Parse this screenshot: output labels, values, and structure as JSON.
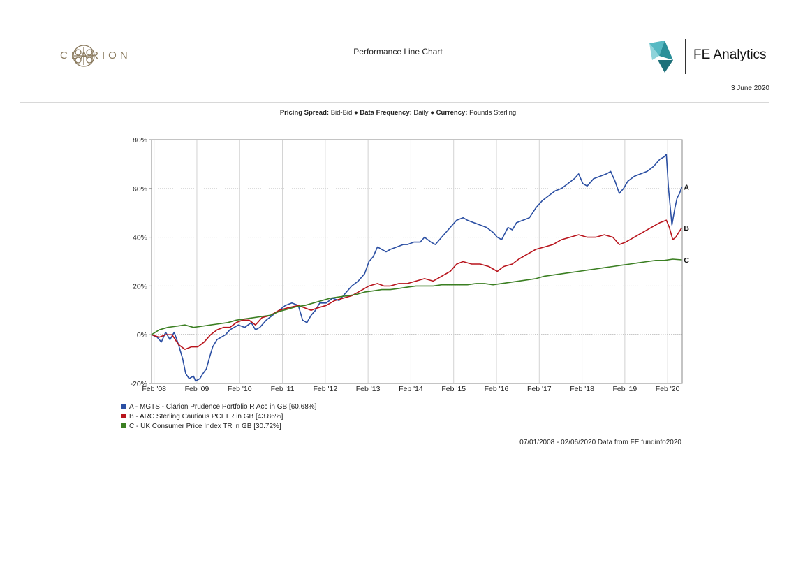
{
  "header": {
    "logo_text": "CLARION",
    "report_title": "Performance Line Chart",
    "brand_text": "FE Analytics",
    "date": "3 June 2020"
  },
  "subheader": {
    "pricing_label": "Pricing Spread:",
    "pricing_value": "Bid-Bid",
    "frequency_label": "Data Frequency:",
    "frequency_value": "Daily",
    "currency_label": "Currency:",
    "currency_value": "Pounds Sterling",
    "separator": "●"
  },
  "chart_data": {
    "type": "line",
    "ylim": [
      -20,
      80
    ],
    "yticks": [
      -20,
      0,
      20,
      40,
      60,
      80
    ],
    "ytick_labels": [
      "-20%",
      "0%",
      "20%",
      "40%",
      "60%",
      "80%"
    ],
    "xlim": [
      2008.02,
      2020.42
    ],
    "xticks": [
      2008.08,
      2009.08,
      2010.08,
      2011.08,
      2012.08,
      2013.08,
      2014.08,
      2015.08,
      2016.08,
      2017.08,
      2018.08,
      2019.08,
      2020.08
    ],
    "xtick_labels": [
      "Feb '08",
      "Feb '09",
      "Feb '10",
      "Feb '11",
      "Feb '12",
      "Feb '13",
      "Feb '14",
      "Feb '15",
      "Feb '16",
      "Feb '17",
      "Feb '18",
      "Feb '19",
      "Feb '20"
    ],
    "grid": true,
    "series": [
      {
        "name": "A - MGTS - Clarion Prudence Portfolio R Acc in GB [60.68%]",
        "label": "A",
        "color": "#2b4fa3",
        "points": [
          [
            2008.02,
            0
          ],
          [
            2008.15,
            -1
          ],
          [
            2008.25,
            -3
          ],
          [
            2008.35,
            1
          ],
          [
            2008.45,
            -2
          ],
          [
            2008.55,
            1
          ],
          [
            2008.65,
            -4
          ],
          [
            2008.75,
            -10
          ],
          [
            2008.82,
            -16
          ],
          [
            2008.9,
            -18
          ],
          [
            2009.0,
            -17
          ],
          [
            2009.05,
            -19
          ],
          [
            2009.15,
            -18
          ],
          [
            2009.22,
            -16
          ],
          [
            2009.3,
            -14
          ],
          [
            2009.38,
            -9
          ],
          [
            2009.45,
            -5
          ],
          [
            2009.55,
            -2
          ],
          [
            2009.65,
            -1
          ],
          [
            2009.75,
            0
          ],
          [
            2009.85,
            2
          ],
          [
            2009.95,
            3
          ],
          [
            2010.05,
            4
          ],
          [
            2010.2,
            3
          ],
          [
            2010.35,
            5
          ],
          [
            2010.45,
            2
          ],
          [
            2010.55,
            3
          ],
          [
            2010.7,
            6
          ],
          [
            2010.85,
            8
          ],
          [
            2011.0,
            10
          ],
          [
            2011.15,
            12
          ],
          [
            2011.3,
            13
          ],
          [
            2011.45,
            12
          ],
          [
            2011.55,
            6
          ],
          [
            2011.65,
            5
          ],
          [
            2011.75,
            8
          ],
          [
            2011.85,
            10
          ],
          [
            2011.95,
            13
          ],
          [
            2012.1,
            13
          ],
          [
            2012.25,
            15
          ],
          [
            2012.4,
            14
          ],
          [
            2012.55,
            17
          ],
          [
            2012.7,
            20
          ],
          [
            2012.85,
            22
          ],
          [
            2013.0,
            25
          ],
          [
            2013.1,
            30
          ],
          [
            2013.2,
            32
          ],
          [
            2013.3,
            36
          ],
          [
            2013.4,
            35
          ],
          [
            2013.5,
            34
          ],
          [
            2013.6,
            35
          ],
          [
            2013.75,
            36
          ],
          [
            2013.9,
            37
          ],
          [
            2014.0,
            37
          ],
          [
            2014.15,
            38
          ],
          [
            2014.3,
            38
          ],
          [
            2014.4,
            40
          ],
          [
            2014.55,
            38
          ],
          [
            2014.65,
            37
          ],
          [
            2014.8,
            40
          ],
          [
            2014.9,
            42
          ],
          [
            2015.0,
            44
          ],
          [
            2015.15,
            47
          ],
          [
            2015.3,
            48
          ],
          [
            2015.4,
            47
          ],
          [
            2015.55,
            46
          ],
          [
            2015.7,
            45
          ],
          [
            2015.85,
            44
          ],
          [
            2016.0,
            42
          ],
          [
            2016.1,
            40
          ],
          [
            2016.2,
            39
          ],
          [
            2016.35,
            44
          ],
          [
            2016.45,
            43
          ],
          [
            2016.55,
            46
          ],
          [
            2016.7,
            47
          ],
          [
            2016.85,
            48
          ],
          [
            2017.0,
            52
          ],
          [
            2017.15,
            55
          ],
          [
            2017.3,
            57
          ],
          [
            2017.45,
            59
          ],
          [
            2017.6,
            60
          ],
          [
            2017.75,
            62
          ],
          [
            2017.9,
            64
          ],
          [
            2018.0,
            66
          ],
          [
            2018.1,
            62
          ],
          [
            2018.2,
            61
          ],
          [
            2018.35,
            64
          ],
          [
            2018.5,
            65
          ],
          [
            2018.65,
            66
          ],
          [
            2018.75,
            67
          ],
          [
            2018.85,
            63
          ],
          [
            2018.95,
            58
          ],
          [
            2019.05,
            60
          ],
          [
            2019.15,
            63
          ],
          [
            2019.3,
            65
          ],
          [
            2019.45,
            66
          ],
          [
            2019.6,
            67
          ],
          [
            2019.75,
            69
          ],
          [
            2019.9,
            72
          ],
          [
            2020.0,
            73
          ],
          [
            2020.05,
            74
          ],
          [
            2020.1,
            60
          ],
          [
            2020.18,
            45
          ],
          [
            2020.25,
            52
          ],
          [
            2020.3,
            56
          ],
          [
            2020.36,
            58
          ],
          [
            2020.41,
            60.68
          ]
        ]
      },
      {
        "name": "B - ARC Sterling Cautious PCI TR in GB [43.86%]",
        "label": "B",
        "color": "#b8141c",
        "points": [
          [
            2008.02,
            0
          ],
          [
            2008.2,
            -1
          ],
          [
            2008.35,
            0
          ],
          [
            2008.5,
            0
          ],
          [
            2008.65,
            -4
          ],
          [
            2008.8,
            -6
          ],
          [
            2008.95,
            -5
          ],
          [
            2009.1,
            -5
          ],
          [
            2009.25,
            -3
          ],
          [
            2009.4,
            0
          ],
          [
            2009.55,
            2
          ],
          [
            2009.7,
            3
          ],
          [
            2009.85,
            3
          ],
          [
            2010.0,
            5
          ],
          [
            2010.15,
            6
          ],
          [
            2010.3,
            6
          ],
          [
            2010.45,
            4
          ],
          [
            2010.6,
            7
          ],
          [
            2010.8,
            8
          ],
          [
            2011.0,
            10
          ],
          [
            2011.2,
            11
          ],
          [
            2011.45,
            12
          ],
          [
            2011.6,
            11
          ],
          [
            2011.75,
            10
          ],
          [
            2011.9,
            11
          ],
          [
            2012.1,
            12
          ],
          [
            2012.3,
            14
          ],
          [
            2012.5,
            15
          ],
          [
            2012.7,
            16
          ],
          [
            2012.9,
            18
          ],
          [
            2013.1,
            20
          ],
          [
            2013.3,
            21
          ],
          [
            2013.45,
            20
          ],
          [
            2013.6,
            20
          ],
          [
            2013.8,
            21
          ],
          [
            2014.0,
            21
          ],
          [
            2014.2,
            22
          ],
          [
            2014.4,
            23
          ],
          [
            2014.6,
            22
          ],
          [
            2014.8,
            24
          ],
          [
            2015.0,
            26
          ],
          [
            2015.15,
            29
          ],
          [
            2015.3,
            30
          ],
          [
            2015.5,
            29
          ],
          [
            2015.7,
            29
          ],
          [
            2015.9,
            28
          ],
          [
            2016.1,
            26
          ],
          [
            2016.25,
            28
          ],
          [
            2016.45,
            29
          ],
          [
            2016.6,
            31
          ],
          [
            2016.8,
            33
          ],
          [
            2017.0,
            35
          ],
          [
            2017.2,
            36
          ],
          [
            2017.4,
            37
          ],
          [
            2017.6,
            39
          ],
          [
            2017.8,
            40
          ],
          [
            2018.0,
            41
          ],
          [
            2018.2,
            40
          ],
          [
            2018.4,
            40
          ],
          [
            2018.6,
            41
          ],
          [
            2018.8,
            40
          ],
          [
            2018.95,
            37
          ],
          [
            2019.1,
            38
          ],
          [
            2019.3,
            40
          ],
          [
            2019.5,
            42
          ],
          [
            2019.7,
            44
          ],
          [
            2019.9,
            46
          ],
          [
            2020.05,
            47
          ],
          [
            2020.12,
            44
          ],
          [
            2020.2,
            39
          ],
          [
            2020.27,
            40
          ],
          [
            2020.34,
            42
          ],
          [
            2020.41,
            43.86
          ]
        ]
      },
      {
        "name": "C - UK Consumer Price Index TR in GB [30.72%]",
        "label": "C",
        "color": "#3b7f22",
        "points": [
          [
            2008.02,
            0
          ],
          [
            2008.2,
            2
          ],
          [
            2008.4,
            3
          ],
          [
            2008.6,
            3.5
          ],
          [
            2008.8,
            4
          ],
          [
            2009.0,
            3
          ],
          [
            2009.2,
            3.5
          ],
          [
            2009.4,
            4
          ],
          [
            2009.6,
            4.5
          ],
          [
            2009.8,
            5
          ],
          [
            2010.0,
            6
          ],
          [
            2010.2,
            6.5
          ],
          [
            2010.4,
            7
          ],
          [
            2010.6,
            7.5
          ],
          [
            2010.8,
            8
          ],
          [
            2011.0,
            9.5
          ],
          [
            2011.2,
            10.5
          ],
          [
            2011.4,
            11.5
          ],
          [
            2011.6,
            12
          ],
          [
            2011.8,
            13
          ],
          [
            2012.0,
            14
          ],
          [
            2012.2,
            15
          ],
          [
            2012.4,
            15.5
          ],
          [
            2012.6,
            16
          ],
          [
            2012.8,
            16.5
          ],
          [
            2013.0,
            17.5
          ],
          [
            2013.2,
            18
          ],
          [
            2013.4,
            18.5
          ],
          [
            2013.6,
            18.5
          ],
          [
            2013.8,
            19
          ],
          [
            2014.0,
            19.5
          ],
          [
            2014.2,
            20
          ],
          [
            2014.4,
            20
          ],
          [
            2014.6,
            20
          ],
          [
            2014.8,
            20.5
          ],
          [
            2015.0,
            20.5
          ],
          [
            2015.2,
            20.5
          ],
          [
            2015.4,
            20.5
          ],
          [
            2015.6,
            21
          ],
          [
            2015.8,
            21
          ],
          [
            2016.0,
            20.5
          ],
          [
            2016.2,
            21
          ],
          [
            2016.4,
            21.5
          ],
          [
            2016.6,
            22
          ],
          [
            2016.8,
            22.5
          ],
          [
            2017.0,
            23
          ],
          [
            2017.2,
            24
          ],
          [
            2017.4,
            24.5
          ],
          [
            2017.6,
            25
          ],
          [
            2017.8,
            25.5
          ],
          [
            2018.0,
            26
          ],
          [
            2018.2,
            26.5
          ],
          [
            2018.4,
            27
          ],
          [
            2018.6,
            27.5
          ],
          [
            2018.8,
            28
          ],
          [
            2019.0,
            28.5
          ],
          [
            2019.2,
            29
          ],
          [
            2019.4,
            29.5
          ],
          [
            2019.6,
            30
          ],
          [
            2019.8,
            30.5
          ],
          [
            2020.0,
            30.5
          ],
          [
            2020.2,
            31
          ],
          [
            2020.41,
            30.72
          ]
        ]
      }
    ]
  },
  "footnote": "07/01/2008 - 02/06/2020 Data from FE fundinfo2020"
}
